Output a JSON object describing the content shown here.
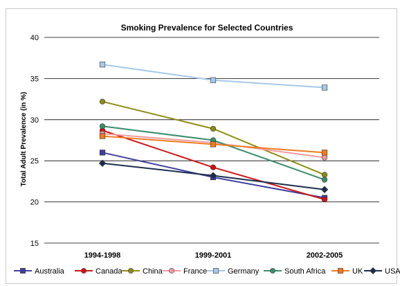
{
  "chart_data": {
    "type": "line",
    "title": "Smoking Prevalence for Selected Countries",
    "xlabel": "",
    "ylabel": "Total Adult Prevalence (in %)",
    "categories": [
      "1994-1998",
      "1999-2001",
      "2002-2005"
    ],
    "ylim": [
      15,
      40
    ],
    "yticks": [
      15,
      20,
      25,
      30,
      35,
      40
    ],
    "grid": true,
    "legend_position": "bottom",
    "series": [
      {
        "name": "Australia",
        "values": [
          26.0,
          23.0,
          20.5
        ],
        "color": "#3f3f9f",
        "marker": "square"
      },
      {
        "name": "Canada",
        "values": [
          28.7,
          24.2,
          20.3
        ],
        "color": "#cc1616",
        "marker": "circle"
      },
      {
        "name": "China",
        "values": [
          32.2,
          28.9,
          23.3
        ],
        "color": "#8c8c14",
        "marker": "circle"
      },
      {
        "name": "France",
        "values": [
          28.3,
          27.2,
          25.4
        ],
        "color": "#f19aa0",
        "marker": "circle"
      },
      {
        "name": "Germany",
        "values": [
          36.7,
          34.8,
          33.9
        ],
        "color": "#a6c8ea",
        "marker": "square"
      },
      {
        "name": "South Africa",
        "values": [
          29.2,
          27.5,
          22.7
        ],
        "color": "#3c8c6c",
        "marker": "circle"
      },
      {
        "name": "UK",
        "values": [
          28.0,
          27.0,
          26.0
        ],
        "color": "#ef7b1e",
        "marker": "square"
      },
      {
        "name": "USA",
        "values": [
          24.7,
          23.2,
          21.5
        ],
        "color": "#1c2e4c",
        "marker": "diamond"
      }
    ]
  }
}
